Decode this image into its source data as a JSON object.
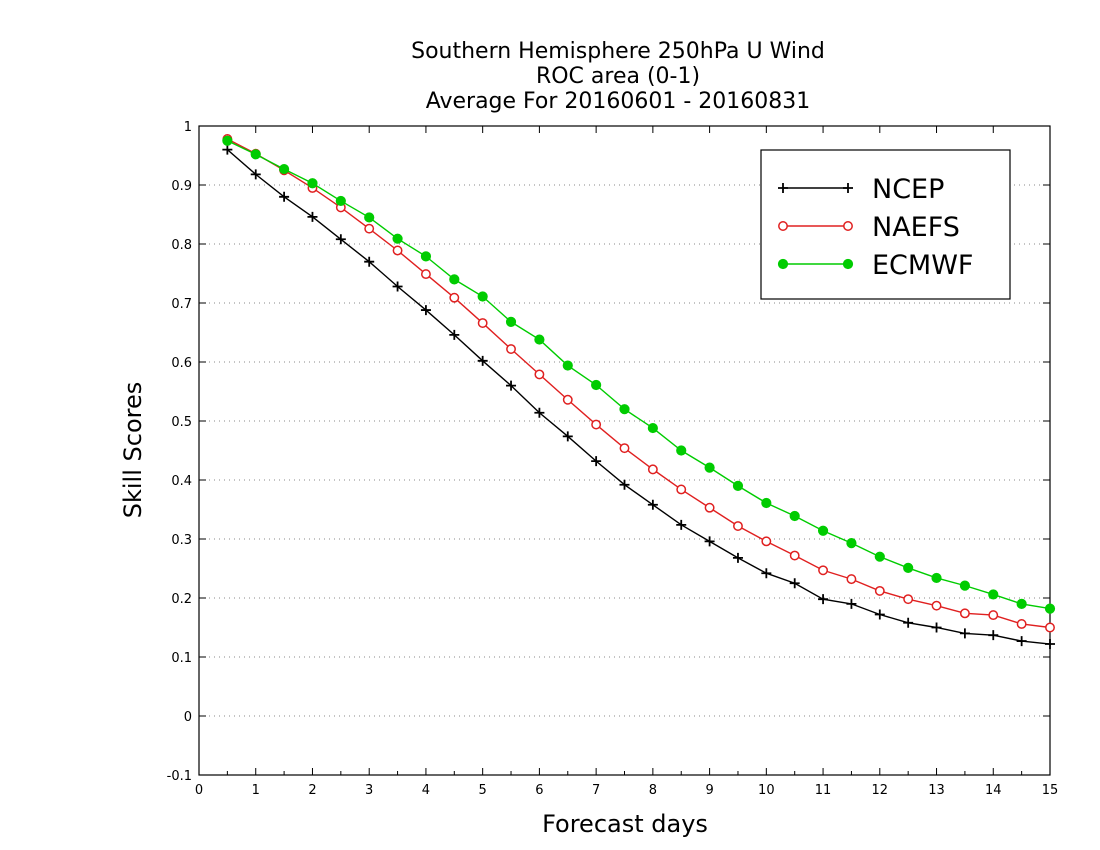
{
  "chart_data": {
    "type": "line",
    "title_lines": [
      "Southern Hemisphere 250hPa U Wind",
      "ROC area (0-1)",
      "Average For 20160601 - 20160831"
    ],
    "xlabel": "Forecast days",
    "ylabel": "Skill Scores",
    "xlim": [
      0,
      15
    ],
    "ylim": [
      -0.1,
      1
    ],
    "x_ticks": [
      0,
      1,
      2,
      3,
      4,
      5,
      6,
      7,
      8,
      9,
      10,
      11,
      12,
      13,
      14,
      15
    ],
    "y_ticks": [
      -0.1,
      0,
      0.1,
      0.2,
      0.3,
      0.4,
      0.5,
      0.6,
      0.7,
      0.8,
      0.9,
      1
    ],
    "y_tick_labels": [
      "-0.1",
      "0",
      "0.1",
      "0.2",
      "0.3",
      "0.4",
      "0.5",
      "0.6",
      "0.7",
      "0.8",
      "0.9",
      "1"
    ],
    "grid": "horizontal dotted",
    "legend_position": "top-right",
    "x": [
      0.5,
      1,
      1.5,
      2,
      2.5,
      3,
      3.5,
      4,
      4.5,
      5,
      5.5,
      6,
      6.5,
      7,
      7.5,
      8,
      8.5,
      9,
      9.5,
      10,
      10.5,
      11,
      11.5,
      12,
      12.5,
      13,
      13.5,
      14,
      14.5,
      15
    ],
    "series": [
      {
        "name": "NCEP",
        "color": "#000000",
        "marker": "plus",
        "values": [
          0.96,
          0.918,
          0.88,
          0.846,
          0.808,
          0.77,
          0.728,
          0.688,
          0.646,
          0.602,
          0.56,
          0.514,
          0.474,
          0.432,
          0.392,
          0.358,
          0.324,
          0.296,
          0.268,
          0.242,
          0.225,
          0.198,
          0.19,
          0.172,
          0.158,
          0.15,
          0.14,
          0.137,
          0.127,
          0.122
        ]
      },
      {
        "name": "NAEFS",
        "color": "#e02020",
        "marker": "open-circle",
        "values": [
          0.978,
          0.953,
          0.925,
          0.895,
          0.862,
          0.826,
          0.789,
          0.749,
          0.709,
          0.666,
          0.622,
          0.579,
          0.536,
          0.494,
          0.454,
          0.418,
          0.384,
          0.353,
          0.322,
          0.296,
          0.272,
          0.247,
          0.232,
          0.212,
          0.198,
          0.187,
          0.174,
          0.171,
          0.156,
          0.15
        ]
      },
      {
        "name": "ECMWF",
        "color": "#00cc00",
        "marker": "filled-circle",
        "values": [
          0.975,
          0.952,
          0.927,
          0.903,
          0.873,
          0.845,
          0.809,
          0.779,
          0.74,
          0.711,
          0.668,
          0.638,
          0.594,
          0.561,
          0.52,
          0.488,
          0.45,
          0.421,
          0.39,
          0.361,
          0.339,
          0.314,
          0.293,
          0.27,
          0.251,
          0.234,
          0.221,
          0.206,
          0.19,
          0.182
        ]
      }
    ]
  }
}
